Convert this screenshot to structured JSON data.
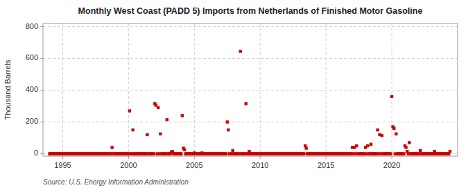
{
  "chart_data": {
    "type": "scatter",
    "title": "Monthly West Coast (PADD 5) Imports from Netherlands of Finished Motor Gasoline",
    "ylabel": "Thousand Barrels",
    "source": "Source: U.S. Energy Information Administration",
    "color": "#cc0000",
    "marker": "square",
    "grid": true,
    "xlim": [
      1993.5,
      2025.0
    ],
    "ylim": [
      -15,
      820
    ],
    "xticks": [
      1995,
      2000,
      2005,
      2010,
      2015,
      2020
    ],
    "yticks": [
      0,
      200,
      400,
      600,
      800
    ],
    "x": [
      1994.0,
      1994.08,
      1994.17,
      1994.25,
      1994.33,
      1994.42,
      1994.5,
      1994.58,
      1994.67,
      1994.75,
      1994.83,
      1994.92,
      1995.0,
      1995.08,
      1995.17,
      1995.25,
      1995.33,
      1995.42,
      1995.5,
      1995.58,
      1995.67,
      1995.75,
      1995.83,
      1995.92,
      1996.0,
      1996.08,
      1996.17,
      1996.25,
      1996.33,
      1996.42,
      1996.5,
      1996.58,
      1996.67,
      1996.75,
      1996.83,
      1996.92,
      1997.0,
      1997.08,
      1997.17,
      1997.25,
      1997.33,
      1997.42,
      1997.5,
      1997.58,
      1997.67,
      1997.75,
      1997.83,
      1997.92,
      1998.0,
      1998.08,
      1998.17,
      1998.25,
      1998.33,
      1998.42,
      1998.5,
      1998.58,
      1998.67,
      1998.75,
      1998.83,
      1998.92,
      1999.0,
      1999.08,
      1999.17,
      1999.25,
      1999.33,
      1999.42,
      1999.5,
      1999.58,
      1999.67,
      1999.75,
      1999.83,
      1999.92,
      2000.0,
      2000.08,
      2000.17,
      2000.25,
      2000.33,
      2000.42,
      2000.5,
      2000.58,
      2000.67,
      2000.75,
      2000.83,
      2000.92,
      2001.0,
      2001.08,
      2001.17,
      2001.25,
      2001.33,
      2001.42,
      2001.5,
      2001.58,
      2001.67,
      2001.75,
      2001.83,
      2001.92,
      2002.0,
      2002.08,
      2002.17,
      2002.25,
      2002.33,
      2002.42,
      2002.5,
      2002.58,
      2002.67,
      2002.75,
      2002.83,
      2002.92,
      2003.0,
      2003.08,
      2003.17,
      2003.25,
      2003.33,
      2003.42,
      2003.5,
      2003.58,
      2003.67,
      2003.75,
      2003.83,
      2003.92,
      2004.0,
      2004.08,
      2004.17,
      2004.25,
      2004.33,
      2004.42,
      2004.5,
      2004.58,
      2004.67,
      2004.75,
      2004.83,
      2004.92,
      2005.0,
      2005.08,
      2005.17,
      2005.25,
      2005.33,
      2005.42,
      2005.5,
      2005.58,
      2005.67,
      2005.75,
      2005.83,
      2005.92,
      2006.0,
      2006.08,
      2006.17,
      2006.25,
      2006.33,
      2006.42,
      2006.5,
      2006.58,
      2006.67,
      2006.75,
      2006.83,
      2006.92,
      2007.0,
      2007.08,
      2007.17,
      2007.25,
      2007.33,
      2007.42,
      2007.5,
      2007.58,
      2007.67,
      2007.75,
      2007.83,
      2007.92,
      2008.0,
      2008.08,
      2008.17,
      2008.25,
      2008.33,
      2008.42,
      2008.5,
      2008.58,
      2008.67,
      2008.75,
      2008.83,
      2008.92,
      2009.0,
      2009.08,
      2009.17,
      2009.25,
      2009.33,
      2009.42,
      2009.5,
      2009.58,
      2009.67,
      2009.75,
      2009.83,
      2009.92,
      2010.0,
      2010.08,
      2010.17,
      2010.25,
      2010.33,
      2010.42,
      2010.5,
      2010.58,
      2010.67,
      2010.75,
      2010.83,
      2010.92,
      2011.0,
      2011.08,
      2011.17,
      2011.25,
      2011.33,
      2011.42,
      2011.5,
      2011.58,
      2011.67,
      2011.75,
      2011.83,
      2011.92,
      2012.0,
      2012.08,
      2012.17,
      2012.25,
      2012.33,
      2012.42,
      2012.5,
      2012.58,
      2012.67,
      2012.75,
      2012.83,
      2012.92,
      2013.0,
      2013.08,
      2013.17,
      2013.25,
      2013.33,
      2013.42,
      2013.5,
      2013.58,
      2013.67,
      2013.75,
      2013.83,
      2013.92,
      2014.0,
      2014.08,
      2014.17,
      2014.25,
      2014.33,
      2014.42,
      2014.5,
      2014.58,
      2014.67,
      2014.75,
      2014.83,
      2014.92,
      2015.0,
      2015.08,
      2015.17,
      2015.25,
      2015.33,
      2015.42,
      2015.5,
      2015.58,
      2015.67,
      2015.75,
      2015.83,
      2015.92,
      2016.0,
      2016.08,
      2016.17,
      2016.25,
      2016.33,
      2016.42,
      2016.5,
      2016.58,
      2016.67,
      2016.75,
      2016.83,
      2016.92,
      2017.0,
      2017.08,
      2017.17,
      2017.25,
      2017.33,
      2017.42,
      2017.5,
      2017.58,
      2017.67,
      2017.75,
      2017.83,
      2017.92,
      2018.0,
      2018.08,
      2018.17,
      2018.25,
      2018.33,
      2018.42,
      2018.5,
      2018.58,
      2018.67,
      2018.75,
      2018.83,
      2018.92,
      2019.0,
      2019.08,
      2019.17,
      2019.25,
      2019.33,
      2019.42,
      2019.5,
      2019.58,
      2019.67,
      2019.75,
      2019.83,
      2019.92,
      2020.0,
      2020.08,
      2020.17,
      2020.25,
      2020.33,
      2020.42,
      2020.5,
      2020.58,
      2020.67,
      2020.75,
      2020.83,
      2020.92,
      2021.0,
      2021.08,
      2021.17,
      2021.25,
      2021.33,
      2021.42,
      2021.5,
      2021.58,
      2021.67,
      2021.75,
      2021.83,
      2021.92,
      2022.0,
      2022.08,
      2022.17,
      2022.25,
      2022.33,
      2022.42,
      2022.5,
      2022.58,
      2022.67,
      2022.75,
      2022.83,
      2022.92,
      2023.0,
      2023.08,
      2023.17,
      2023.25,
      2023.33,
      2023.42,
      2023.5,
      2023.58,
      2023.67,
      2023.75,
      2023.83,
      2023.92,
      2024.0,
      2024.08,
      2024.17,
      2024.25,
      2024.33,
      2024.42
    ],
    "values": [
      0,
      0,
      0,
      0,
      0,
      0,
      0,
      0,
      0,
      0,
      0,
      0,
      0,
      0,
      0,
      0,
      0,
      0,
      0,
      0,
      0,
      0,
      0,
      0,
      0,
      0,
      0,
      0,
      0,
      0,
      0,
      0,
      0,
      0,
      0,
      0,
      0,
      0,
      0,
      0,
      0,
      0,
      0,
      0,
      0,
      0,
      0,
      0,
      0,
      0,
      0,
      0,
      0,
      0,
      0,
      0,
      0,
      40,
      0,
      0,
      0,
      0,
      0,
      0,
      0,
      0,
      0,
      0,
      0,
      0,
      0,
      0,
      0,
      270,
      0,
      0,
      150,
      0,
      0,
      0,
      0,
      0,
      0,
      0,
      0,
      0,
      0,
      0,
      0,
      120,
      0,
      0,
      0,
      0,
      0,
      0,
      315,
      305,
      0,
      290,
      0,
      125,
      0,
      0,
      0,
      0,
      0,
      215,
      0,
      0,
      0,
      10,
      15,
      0,
      0,
      0,
      0,
      0,
      0,
      0,
      0,
      240,
      35,
      25,
      0,
      0,
      0,
      0,
      0,
      0,
      0,
      0,
      5,
      0,
      0,
      0,
      0,
      0,
      0,
      5,
      0,
      0,
      0,
      0,
      0,
      0,
      0,
      0,
      0,
      0,
      0,
      0,
      0,
      0,
      0,
      0,
      0,
      0,
      0,
      0,
      0,
      0,
      200,
      150,
      0,
      0,
      0,
      20,
      0,
      0,
      0,
      0,
      0,
      0,
      645,
      0,
      0,
      0,
      0,
      315,
      0,
      0,
      15,
      0,
      0,
      0,
      0,
      0,
      0,
      0,
      0,
      0,
      0,
      0,
      0,
      0,
      0,
      0,
      0,
      0,
      0,
      0,
      0,
      0,
      0,
      0,
      0,
      0,
      0,
      0,
      0,
      0,
      0,
      0,
      0,
      0,
      0,
      0,
      0,
      0,
      0,
      0,
      0,
      0,
      0,
      0,
      0,
      0,
      0,
      0,
      0,
      0,
      0,
      50,
      35,
      0,
      0,
      0,
      0,
      0,
      0,
      0,
      0,
      0,
      0,
      0,
      0,
      0,
      0,
      0,
      0,
      0,
      0,
      0,
      0,
      0,
      0,
      0,
      0,
      0,
      0,
      0,
      0,
      0,
      0,
      0,
      0,
      0,
      0,
      0,
      0,
      0,
      0,
      0,
      0,
      0,
      40,
      0,
      40,
      0,
      50,
      0,
      0,
      0,
      0,
      0,
      0,
      0,
      40,
      0,
      50,
      0,
      0,
      60,
      0,
      0,
      0,
      0,
      0,
      150,
      0,
      120,
      0,
      115,
      0,
      0,
      0,
      0,
      0,
      0,
      0,
      0,
      360,
      170,
      160,
      0,
      125,
      0,
      0,
      0,
      0,
      0,
      0,
      0,
      50,
      40,
      15,
      0,
      70,
      0,
      0,
      0,
      0,
      0,
      0,
      0,
      0,
      0,
      20,
      0,
      0,
      0,
      0,
      0,
      0,
      0,
      0,
      0,
      0,
      0,
      0,
      15,
      0,
      0,
      0,
      0,
      0,
      0,
      0,
      0,
      0,
      0,
      0,
      0,
      0,
      15
    ]
  }
}
